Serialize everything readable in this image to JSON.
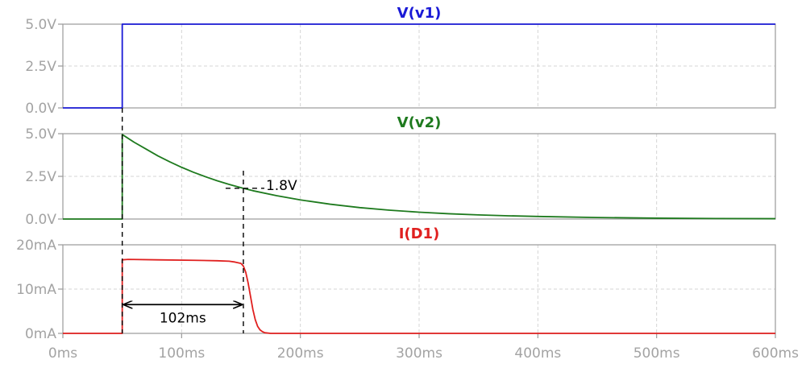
{
  "chart_data": {
    "type": "line",
    "x_axis": {
      "range": [
        0,
        600
      ],
      "unit": "ms",
      "ticks": [
        0,
        100,
        200,
        300,
        400,
        500,
        600
      ],
      "tick_labels": [
        "0ms",
        "100ms",
        "200ms",
        "300ms",
        "400ms",
        "500ms",
        "600ms"
      ]
    },
    "grid": true,
    "colors": {
      "v1": "#1a1ad6",
      "v2": "#1e7a1e",
      "d1": "#e0201f",
      "tick_text": "#a3a3a3",
      "grid": "#d4d4d4"
    },
    "panels": [
      {
        "id": "v1",
        "title": "V(v1)",
        "color": "#1a1ad6",
        "ylim": [
          0,
          5
        ],
        "y_ticks": [
          0,
          2.5,
          5
        ],
        "y_tick_labels": [
          "0.0V",
          "2.5V",
          "5.0V"
        ],
        "series": {
          "x": [
            0,
            50,
            50,
            600
          ],
          "y": [
            0,
            0,
            5,
            5
          ]
        }
      },
      {
        "id": "v2",
        "title": "V(v2)",
        "color": "#1e7a1e",
        "ylim": [
          0,
          5
        ],
        "y_ticks": [
          0,
          2.5,
          5
        ],
        "y_tick_labels": [
          "0.0V",
          "2.5V",
          "5.0V"
        ],
        "series": {
          "x": [
            0,
            50,
            50,
            60,
            70,
            80,
            90,
            100,
            110,
            120,
            130,
            140,
            152,
            160,
            180,
            200,
            225,
            250,
            275,
            300,
            325,
            350,
            375,
            400,
            450,
            500,
            550,
            600
          ],
          "y": [
            0,
            0,
            4.95,
            4.5,
            4.1,
            3.7,
            3.35,
            3.03,
            2.74,
            2.48,
            2.24,
            2.03,
            1.8,
            1.66,
            1.37,
            1.12,
            0.87,
            0.67,
            0.52,
            0.4,
            0.31,
            0.24,
            0.19,
            0.15,
            0.09,
            0.05,
            0.03,
            0.02
          ]
        }
      },
      {
        "id": "d1",
        "title": "I(D1)",
        "color": "#e0201f",
        "ylim": [
          0,
          20
        ],
        "y_ticks": [
          0,
          10,
          20
        ],
        "y_tick_labels": [
          "0mA",
          "10mA",
          "20mA"
        ],
        "series": {
          "x": [
            0,
            50,
            50,
            55,
            80,
            110,
            130,
            140,
            145,
            150,
            152,
            154,
            156,
            158,
            160,
            162,
            164,
            166,
            168,
            170,
            175,
            600
          ],
          "y": [
            0,
            0,
            16.6,
            16.7,
            16.6,
            16.5,
            16.4,
            16.3,
            16.1,
            15.8,
            15.2,
            13.8,
            11.4,
            8.4,
            5.4,
            3.1,
            1.6,
            0.8,
            0.4,
            0.15,
            0,
            0
          ]
        }
      }
    ],
    "annotations": {
      "marker_x": [
        50,
        152
      ],
      "v2_marker_label": "1.8V",
      "v2_marker_value": 1.8,
      "interval_label": "102ms",
      "interval_y": 6.5
    }
  }
}
